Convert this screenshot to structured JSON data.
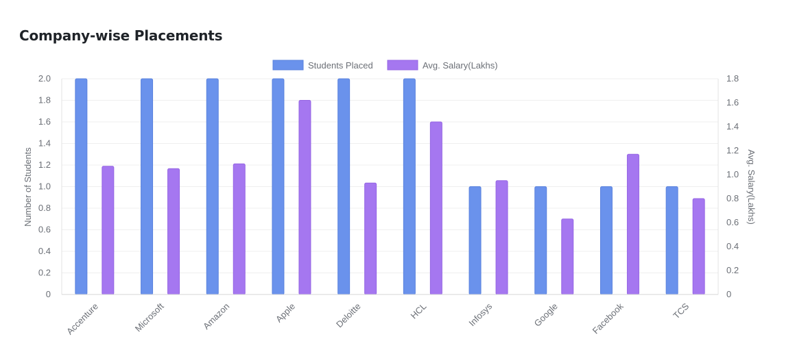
{
  "page": {
    "title": "Company-wise Placements"
  },
  "chart_data": {
    "type": "bar",
    "categories": [
      "Accenture",
      "Microsoft",
      "Amazon",
      "Apple",
      "Deloitte",
      "HCL",
      "Infosys",
      "Google",
      "Facebook",
      "TCS"
    ],
    "series": [
      {
        "name": "Students Placed",
        "axis": "left",
        "color": "#6a92ec",
        "values": [
          2,
          2,
          2,
          2,
          2,
          2,
          1,
          1,
          1,
          1
        ]
      },
      {
        "name": "Avg. Salary(Lakhs)",
        "axis": "right",
        "color": "#a577f0",
        "values": [
          1.07,
          1.05,
          1.09,
          1.62,
          0.93,
          1.44,
          0.95,
          0.63,
          1.17,
          0.8
        ]
      }
    ],
    "ylabel": "Number of Students",
    "y2label": "Avg. Salary(Lakhs)",
    "ylim": [
      0,
      2.0
    ],
    "y2lim": [
      0,
      1.8
    ],
    "yticks": [
      "0",
      "0.2",
      "0.4",
      "0.6",
      "0.8",
      "1.0",
      "1.2",
      "1.4",
      "1.6",
      "1.8",
      "2.0"
    ],
    "y2ticks": [
      "0",
      "0.2",
      "0.4",
      "0.6",
      "0.8",
      "1.0",
      "1.2",
      "1.4",
      "1.6",
      "1.8"
    ],
    "legend": "top-center",
    "grid": true
  }
}
